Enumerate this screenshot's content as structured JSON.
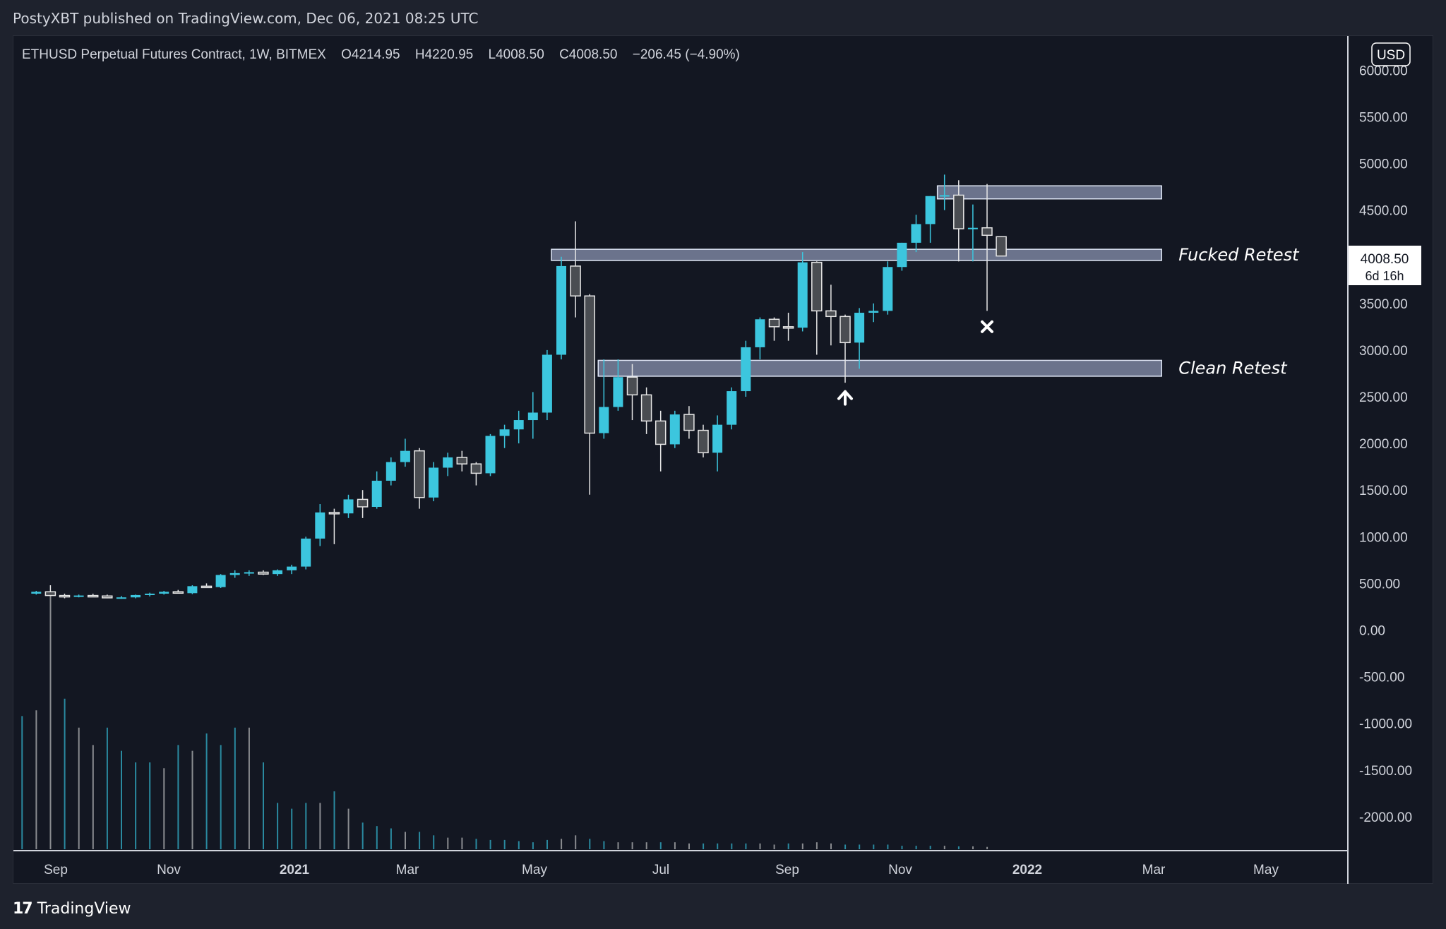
{
  "header": {
    "published": "PostyXBT published on TradingView.com, Dec 06, 2021 08:25 UTC"
  },
  "legend": {
    "symbol": "ETHUSD Perpetual Futures Contract, 1W, BITMEX",
    "open": "O4214.95",
    "high": "H4220.95",
    "low": "L4008.50",
    "close": "C4008.50",
    "change": "−206.45 (−4.90%)"
  },
  "currency_badge": "USD",
  "price_label": {
    "price": "4008.50",
    "countdown": "6d 16h"
  },
  "footer": {
    "brand": "TradingView",
    "logo_icon": "tradingview-logo-icon"
  },
  "colors": {
    "background": "#131722",
    "up": "#3cc6de",
    "down_fill": "#4a4d52",
    "down_stroke": "#e6e6e6",
    "zone_fill": "#b4c0e3",
    "text": "#d1d4dc"
  },
  "chart_data": {
    "type": "candlestick",
    "interval": "1W",
    "ylim": [
      -2250,
      6150
    ],
    "y_ticks": [
      "6000.00",
      "5500.00",
      "5000.00",
      "4500.00",
      "4000.00",
      "3500.00",
      "3000.00",
      "2500.00",
      "2000.00",
      "1500.00",
      "1000.00",
      "500.00",
      "0.00",
      "-500.00",
      "-1000.00",
      "-1500.00",
      "-2000.00"
    ],
    "x_ticks": [
      {
        "label": "Sep",
        "bold": false
      },
      {
        "label": "Nov",
        "bold": false
      },
      {
        "label": "2021",
        "bold": true
      },
      {
        "label": "Mar",
        "bold": false
      },
      {
        "label": "May",
        "bold": false
      },
      {
        "label": "Jul",
        "bold": false
      },
      {
        "label": "Sep",
        "bold": false
      },
      {
        "label": "Nov",
        "bold": false
      },
      {
        "label": "2022",
        "bold": true
      },
      {
        "label": "Mar",
        "bold": false
      },
      {
        "label": "May",
        "bold": false
      }
    ],
    "candles": [
      [
        390,
        420,
        380,
        410
      ],
      [
        410,
        480,
        370,
        370
      ],
      [
        370,
        390,
        340,
        360
      ],
      [
        360,
        380,
        350,
        370
      ],
      [
        370,
        390,
        355,
        365
      ],
      [
        365,
        380,
        340,
        345
      ],
      [
        345,
        365,
        335,
        350
      ],
      [
        350,
        380,
        340,
        375
      ],
      [
        375,
        400,
        360,
        390
      ],
      [
        390,
        420,
        380,
        410
      ],
      [
        410,
        430,
        390,
        395
      ],
      [
        395,
        480,
        385,
        470
      ],
      [
        470,
        500,
        450,
        460
      ],
      [
        460,
        600,
        450,
        590
      ],
      [
        590,
        640,
        560,
        610
      ],
      [
        610,
        640,
        580,
        620
      ],
      [
        620,
        640,
        590,
        600
      ],
      [
        600,
        650,
        580,
        640
      ],
      [
        640,
        700,
        600,
        680
      ],
      [
        680,
        1000,
        650,
        980
      ],
      [
        980,
        1350,
        900,
        1260
      ],
      [
        1260,
        1300,
        920,
        1250
      ],
      [
        1250,
        1450,
        1200,
        1400
      ],
      [
        1400,
        1500,
        1200,
        1320
      ],
      [
        1320,
        1700,
        1300,
        1600
      ],
      [
        1600,
        1850,
        1550,
        1800
      ],
      [
        1800,
        2050,
        1750,
        1920
      ],
      [
        1920,
        1950,
        1300,
        1420
      ],
      [
        1420,
        1800,
        1380,
        1740
      ],
      [
        1740,
        1900,
        1650,
        1850
      ],
      [
        1850,
        1920,
        1700,
        1780
      ],
      [
        1780,
        1800,
        1550,
        1680
      ],
      [
        1680,
        2100,
        1650,
        2080
      ],
      [
        2080,
        2200,
        1950,
        2150
      ],
      [
        2150,
        2350,
        2000,
        2250
      ],
      [
        2250,
        2550,
        2050,
        2330
      ],
      [
        2330,
        3000,
        2250,
        2950
      ],
      [
        2950,
        4000,
        2900,
        3900
      ],
      [
        3900,
        4380,
        3350,
        3580
      ],
      [
        3580,
        3600,
        1450,
        2110
      ],
      [
        2110,
        2900,
        2050,
        2390
      ],
      [
        2390,
        2900,
        2350,
        2710
      ],
      [
        2710,
        2850,
        2250,
        2520
      ],
      [
        2520,
        2600,
        2100,
        2240
      ],
      [
        2240,
        2350,
        1700,
        1990
      ],
      [
        1990,
        2350,
        1950,
        2310
      ],
      [
        2310,
        2400,
        2050,
        2140
      ],
      [
        2140,
        2200,
        1850,
        1900
      ],
      [
        1900,
        2300,
        1700,
        2200
      ],
      [
        2200,
        2600,
        2150,
        2560
      ],
      [
        2560,
        3100,
        2500,
        3030
      ],
      [
        3030,
        3350,
        2900,
        3330
      ],
      [
        3330,
        3350,
        3100,
        3250
      ],
      [
        3250,
        3400,
        3100,
        3240
      ],
      [
        3240,
        4050,
        3200,
        3940
      ],
      [
        3940,
        3950,
        2950,
        3420
      ],
      [
        3420,
        3700,
        3050,
        3360
      ],
      [
        3360,
        3380,
        2650,
        3080
      ],
      [
        3080,
        3450,
        2800,
        3400
      ],
      [
        3400,
        3500,
        3300,
        3420
      ],
      [
        3420,
        3950,
        3380,
        3890
      ],
      [
        3890,
        4150,
        3850,
        4150
      ],
      [
        4150,
        4450,
        4050,
        4350
      ],
      [
        4350,
        4650,
        4150,
        4650
      ],
      [
        4650,
        4880,
        4500,
        4660
      ],
      [
        4660,
        4820,
        3950,
        4300
      ],
      [
        4300,
        4560,
        3950,
        4310
      ],
      [
        4310,
        4780,
        3420,
        4230
      ],
      [
        4215,
        4221,
        4008,
        4008
      ]
    ],
    "volume": [
      1150,
      1200,
      2200,
      1300,
      1050,
      900,
      1050,
      850,
      750,
      750,
      700,
      900,
      850,
      1000,
      900,
      1050,
      1050,
      750,
      400,
      350,
      400,
      400,
      500,
      350,
      230,
      200,
      180,
      150,
      150,
      120,
      100,
      100,
      90,
      80,
      80,
      70,
      60,
      80,
      90,
      120,
      90,
      70,
      60,
      60,
      60,
      60,
      60,
      50,
      50,
      50,
      50,
      50,
      50,
      40,
      50,
      50,
      60,
      50,
      40,
      40,
      40,
      40,
      30,
      30,
      30,
      30,
      25,
      25,
      20
    ],
    "zones": [
      {
        "low": 4620,
        "high": 4760,
        "start_index": 63.5,
        "end_index": 79.3
      },
      {
        "low": 3960,
        "high": 4080,
        "start_index": 36.3,
        "end_index": 79.3,
        "label": "Fucked Retest"
      },
      {
        "low": 2720,
        "high": 2890,
        "start_index": 39.6,
        "end_index": 79.3,
        "label": "Clean Retest"
      }
    ],
    "markers": [
      {
        "type": "arrow-up",
        "index": 57,
        "price": 2510
      },
      {
        "type": "cross",
        "index": 67,
        "price": 3250
      }
    ]
  }
}
